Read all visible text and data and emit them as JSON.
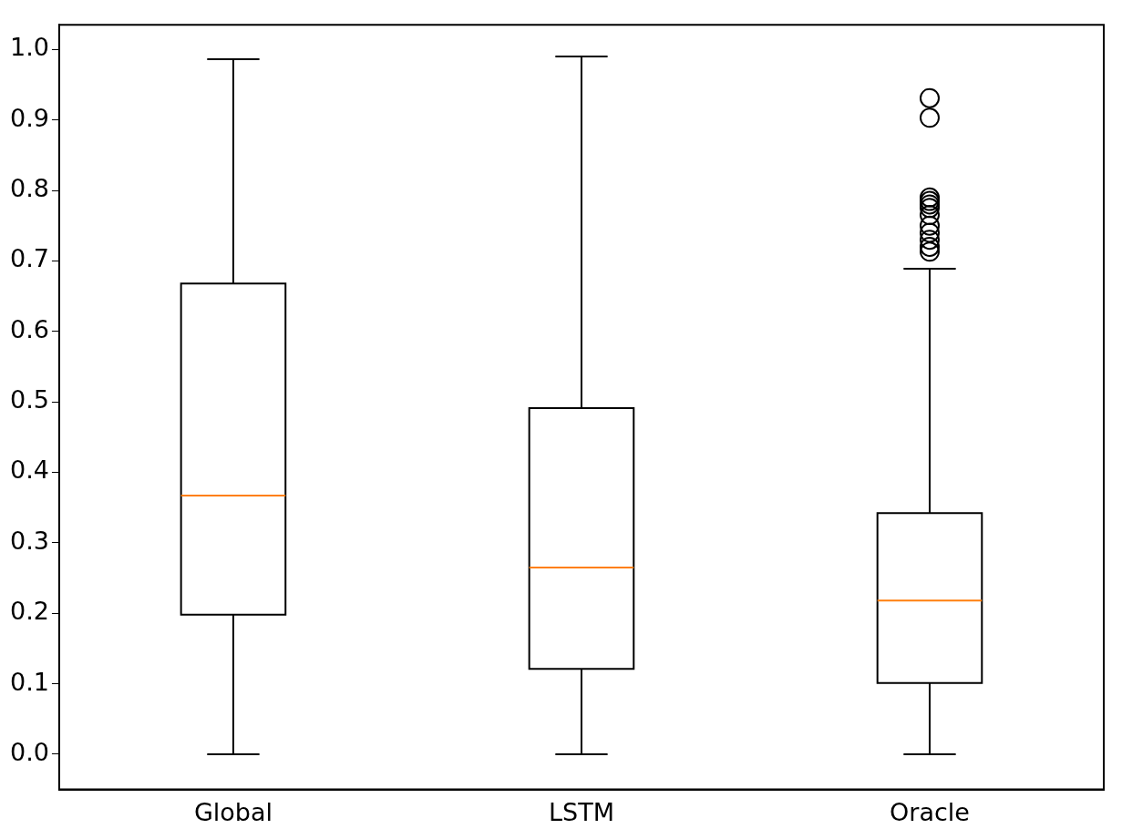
{
  "chart_data": {
    "type": "box",
    "categories": [
      "Global",
      "LSTM",
      "Oracle"
    ],
    "boxes": [
      {
        "low": 0,
        "q1": 0.198,
        "median": 0.367,
        "q3": 0.668,
        "high": 0.986
      },
      {
        "low": 0,
        "q1": 0.121,
        "median": 0.265,
        "q3": 0.491,
        "high": 0.99
      },
      {
        "low": 0,
        "q1": 0.101,
        "median": 0.218,
        "q3": 0.342,
        "high": 0.689,
        "outliers": [
          0.931,
          0.903,
          0.79,
          0.785,
          0.78,
          0.775,
          0.765,
          0.75,
          0.74,
          0.73,
          0.72,
          0.713
        ]
      }
    ],
    "color": "#000000",
    "ylim": [
      -0.05,
      1.035
    ],
    "yticks": [
      {
        "value": 0,
        "label": "0.0"
      },
      {
        "value": 0.1,
        "label": "0.1"
      },
      {
        "value": 0.2,
        "label": "0.2"
      },
      {
        "value": 0.3,
        "label": "0.3"
      },
      {
        "value": 0.4,
        "label": "0.4"
      },
      {
        "value": 0.5,
        "label": "0.5"
      },
      {
        "value": 0.6,
        "label": "0.6"
      },
      {
        "value": 0.7,
        "label": "0.7"
      },
      {
        "value": 0.8,
        "label": "0.8"
      },
      {
        "value": 0.9,
        "label": "0.9"
      },
      {
        "value": 1,
        "label": "1.0"
      }
    ],
    "grid": false
  }
}
